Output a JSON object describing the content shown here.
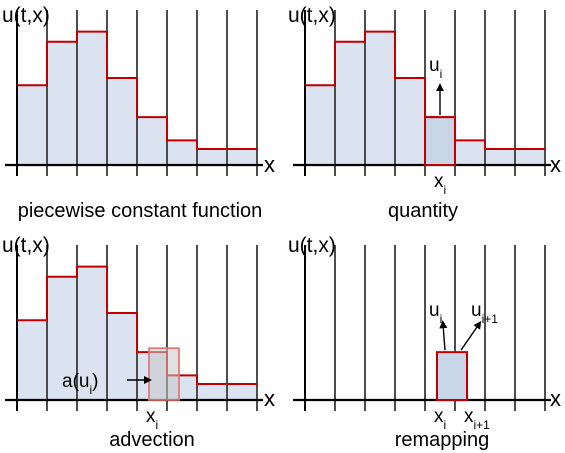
{
  "panels": [
    {
      "id": "piecewise",
      "ylabel": "u(t,x)",
      "xlabel": "x",
      "caption": "piecewise constant function",
      "cells": [
        0.55,
        0.85,
        0.92,
        0.6,
        0.33,
        0.17,
        0.11,
        0.11
      ]
    },
    {
      "id": "quantity",
      "ylabel": "u(t,x)",
      "xlabel": "x",
      "caption": "quantity",
      "cells": [
        0.55,
        0.85,
        0.92,
        0.6,
        0.33,
        0.17,
        0.11,
        0.11
      ],
      "highlight_cell": 4,
      "arrow_label": {
        "base": "u",
        "sub": "i"
      },
      "tick_labels": [
        {
          "cell_edge": 4,
          "base": "x",
          "sub": "i"
        }
      ]
    },
    {
      "id": "advection",
      "ylabel": "u(t,x)",
      "xlabel": "x",
      "caption": "advection",
      "cells": [
        0.55,
        0.85,
        0.92,
        0.6,
        0.33,
        0.17,
        0.11,
        0.11
      ],
      "moved_cell": 4,
      "shift_fraction": 0.4,
      "shift_label": {
        "prefix": "a(u",
        "sub": "i",
        "suffix": ")"
      },
      "tick_labels": [
        {
          "cell_edge": 4,
          "base": "x",
          "sub": "i"
        }
      ]
    },
    {
      "id": "remapping",
      "ylabel": "u(t,x)",
      "xlabel": "x",
      "caption": "remapping",
      "box_cell": 4,
      "box_height": 0.33,
      "shift_fraction": 0.4,
      "arrow_labels": [
        {
          "base": "u",
          "sub": "i"
        },
        {
          "base": "u",
          "sub": "i+1"
        }
      ],
      "tick_labels": [
        {
          "cell_edge": 4,
          "base": "x",
          "sub": "i"
        },
        {
          "cell_edge": 5,
          "base": "x",
          "sub": "i+1"
        }
      ]
    }
  ],
  "colors": {
    "step": "#c00000",
    "fill": "#dae3ef",
    "grid": "#3a3a3a",
    "axis": "#000000",
    "moved_outline": "#e07070"
  }
}
